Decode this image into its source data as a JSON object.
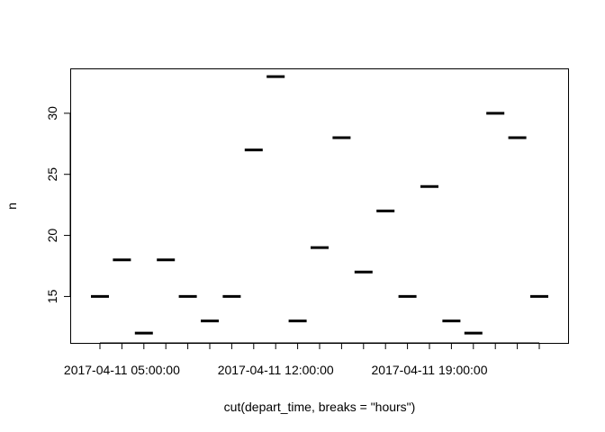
{
  "chart_data": {
    "type": "scatter",
    "mark_style": "horizontal-bar",
    "title": "",
    "xlabel": "cut(depart_time, breaks = \"hours\")",
    "ylabel": "n",
    "x_tick_labels": [
      "2017-04-11 05:00:00",
      "2017-04-11 12:00:00",
      "2017-04-11 19:00:00"
    ],
    "y_ticks": [
      15,
      20,
      25,
      30
    ],
    "ylim": [
      11.2,
      33.6
    ],
    "grid": false,
    "categories": [
      "2017-04-11 04:00:00",
      "2017-04-11 05:00:00",
      "2017-04-11 06:00:00",
      "2017-04-11 07:00:00",
      "2017-04-11 08:00:00",
      "2017-04-11 09:00:00",
      "2017-04-11 10:00:00",
      "2017-04-11 11:00:00",
      "2017-04-11 12:00:00",
      "2017-04-11 13:00:00",
      "2017-04-11 14:00:00",
      "2017-04-11 15:00:00",
      "2017-04-11 16:00:00",
      "2017-04-11 17:00:00",
      "2017-04-11 18:00:00",
      "2017-04-11 19:00:00",
      "2017-04-11 20:00:00",
      "2017-04-11 21:00:00",
      "2017-04-11 22:00:00",
      "2017-04-11 23:00:00",
      "2017-04-12 00:00:00"
    ],
    "values": [
      15,
      18,
      12,
      18,
      15,
      13,
      15,
      27,
      33,
      13,
      19,
      28,
      17,
      22,
      15,
      24,
      13,
      12,
      30,
      28,
      15
    ]
  }
}
